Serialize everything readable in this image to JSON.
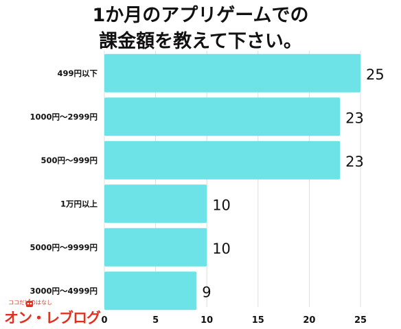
{
  "title_lines": [
    "1か月のアプリゲームでの",
    "課金額を教えて下さい。"
  ],
  "logo": {
    "tagline": "ココだけのはなし",
    "name": "オンラインブログ",
    "display": "オン・レブログ"
  },
  "colors": {
    "bar": "#6de3e8",
    "grid": "#dddddd",
    "text": "#111111"
  },
  "chart_data": {
    "type": "bar",
    "orientation": "horizontal",
    "title": "1か月のアプリゲームでの課金額を教えて下さい。",
    "categories": [
      "499円以下",
      "1000円〜2999円",
      "500円〜999円",
      "1万円以上",
      "5000円〜9999円",
      "3000円〜4999円"
    ],
    "values": [
      25,
      23,
      23,
      10,
      10,
      9
    ],
    "xlim": [
      0,
      25
    ],
    "xticks": [
      0,
      5,
      10,
      15,
      20,
      25
    ],
    "grid": true,
    "data_labels": true
  }
}
